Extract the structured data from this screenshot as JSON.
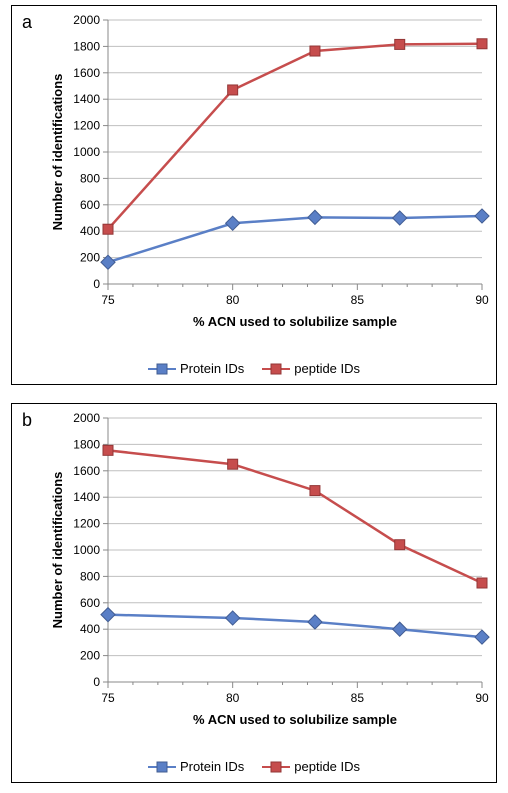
{
  "background_color": "#ffffff",
  "panel_border_color": "#000000",
  "panels": [
    {
      "id": "a",
      "letter": "a",
      "chart": {
        "type": "line",
        "plot_background": "#ffffff",
        "grid_color": "#bfbfbf",
        "grid_width": 1,
        "axis_line_color": "#888888",
        "axis_font_color": "#000000",
        "tick_font_size": 12,
        "axis_title_font_size": 13,
        "axis_title_font_weight": "bold",
        "x": {
          "label": "% ACN used to solubilize sample",
          "lim": [
            75,
            90
          ],
          "major_ticks": [
            75,
            80,
            85,
            90
          ],
          "minor_ticks": [
            76,
            77,
            78,
            79,
            81,
            82,
            83,
            84,
            86,
            87,
            88,
            89
          ]
        },
        "y": {
          "label": "Number of identifications",
          "lim": [
            0,
            2000
          ],
          "major_ticks": [
            0,
            200,
            400,
            600,
            800,
            1000,
            1200,
            1400,
            1600,
            1800,
            2000
          ]
        },
        "series": [
          {
            "name": "Protein IDs",
            "color": "#5a7fc6",
            "line_width": 2.5,
            "marker": "diamond",
            "marker_fill": "#5a7fc6",
            "marker_stroke": "#415c92",
            "marker_size": 10,
            "x": [
              75,
              80,
              83.3,
              86.7,
              90
            ],
            "y": [
              165,
              460,
              505,
              500,
              515
            ]
          },
          {
            "name": "peptide IDs",
            "color": "#c64d4d",
            "line_width": 2.5,
            "marker": "square",
            "marker_fill": "#c64d4d",
            "marker_stroke": "#933636",
            "marker_size": 10,
            "x": [
              75,
              80,
              83.3,
              86.7,
              90
            ],
            "y": [
              415,
              1470,
              1765,
              1815,
              1820
            ]
          }
        ]
      }
    },
    {
      "id": "b",
      "letter": "b",
      "chart": {
        "type": "line",
        "plot_background": "#ffffff",
        "grid_color": "#bfbfbf",
        "grid_width": 1,
        "axis_line_color": "#888888",
        "axis_font_color": "#000000",
        "tick_font_size": 12,
        "axis_title_font_size": 13,
        "axis_title_font_weight": "bold",
        "x": {
          "label": "% ACN used to solubilize sample",
          "lim": [
            75,
            90
          ],
          "major_ticks": [
            75,
            80,
            85,
            90
          ],
          "minor_ticks": [
            76,
            77,
            78,
            79,
            81,
            82,
            83,
            84,
            86,
            87,
            88,
            89
          ]
        },
        "y": {
          "label": "Number of identifications",
          "lim": [
            0,
            2000
          ],
          "major_ticks": [
            0,
            200,
            400,
            600,
            800,
            1000,
            1200,
            1400,
            1600,
            1800,
            2000
          ]
        },
        "series": [
          {
            "name": "Protein IDs",
            "color": "#5a7fc6",
            "line_width": 2.5,
            "marker": "diamond",
            "marker_fill": "#5a7fc6",
            "marker_stroke": "#415c92",
            "marker_size": 10,
            "x": [
              75,
              80,
              83.3,
              86.7,
              90
            ],
            "y": [
              510,
              485,
              455,
              400,
              340
            ]
          },
          {
            "name": "peptide IDs",
            "color": "#c64d4d",
            "line_width": 2.5,
            "marker": "square",
            "marker_fill": "#c64d4d",
            "marker_stroke": "#933636",
            "marker_size": 10,
            "x": [
              75,
              80,
              83.3,
              86.7,
              90
            ],
            "y": [
              1755,
              1650,
              1450,
              1040,
              750
            ]
          }
        ]
      }
    }
  ]
}
